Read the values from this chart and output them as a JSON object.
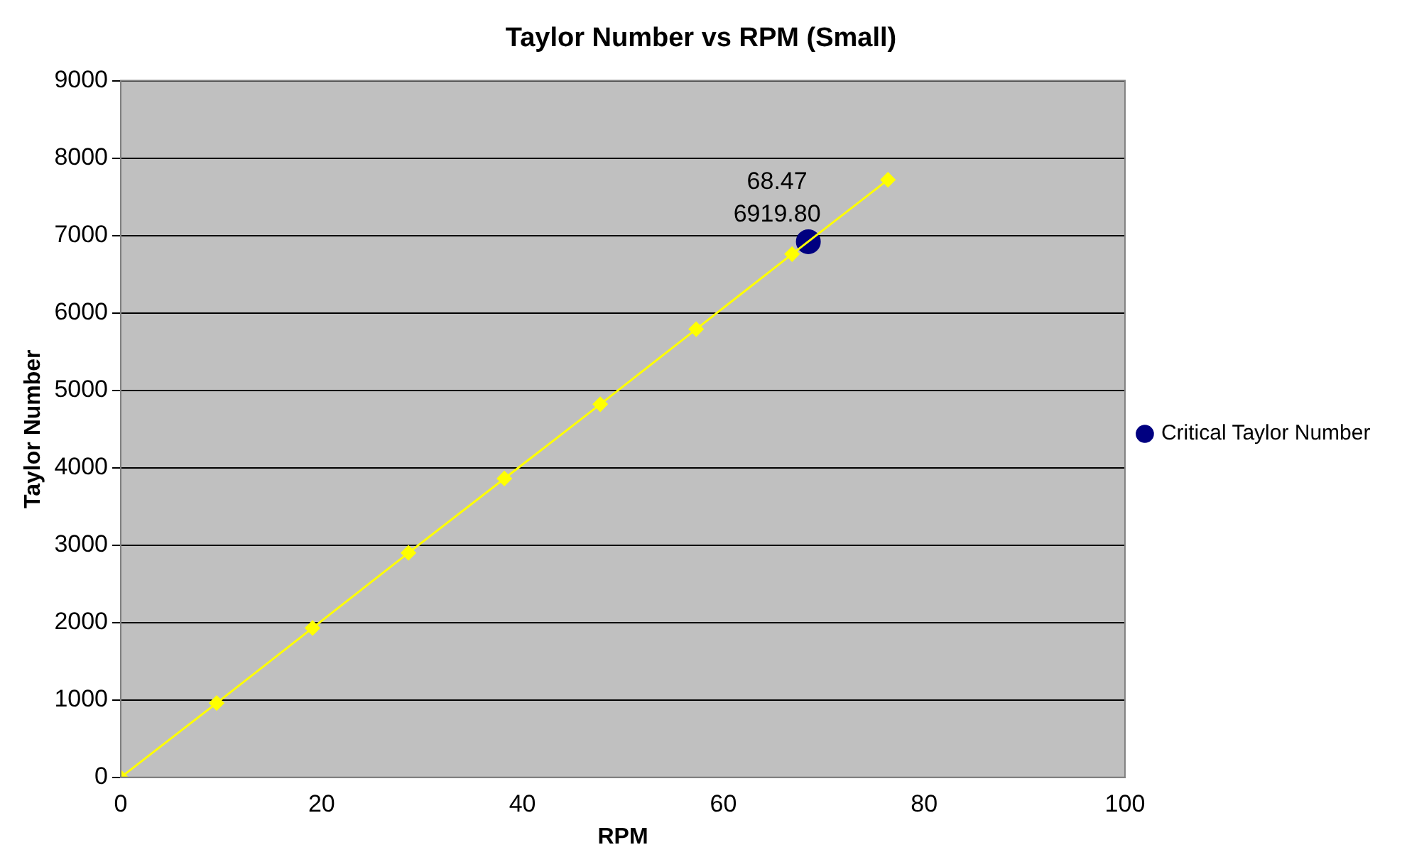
{
  "chart_data": {
    "type": "line",
    "title": "Taylor Number vs RPM (Small)",
    "xlabel": "RPM",
    "ylabel": "Taylor Number",
    "xlim": [
      0,
      100
    ],
    "xticks": [
      0,
      20,
      40,
      60,
      80,
      100
    ],
    "ylim": [
      0,
      9000
    ],
    "yticks": [
      0,
      1000,
      2000,
      3000,
      4000,
      5000,
      6000,
      7000,
      8000,
      9000
    ],
    "grid": "y",
    "legend": "right",
    "series": [
      {
        "color": "#ffff00",
        "marker": "diamond",
        "x": [
          0,
          9.55,
          19.1,
          28.65,
          38.2,
          47.75,
          57.3,
          66.85,
          76.4
        ],
        "values": [
          0,
          960,
          1930,
          2900,
          3860,
          4820,
          5790,
          6760,
          7720
        ]
      },
      {
        "name": "Critical Taylor Number",
        "color": "#000080",
        "marker": "circle",
        "x": [
          68.47
        ],
        "values": [
          6919.8
        ],
        "value_labels": [
          "68.47\n6919.80"
        ]
      }
    ]
  }
}
